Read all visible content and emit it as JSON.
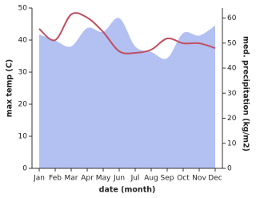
{
  "chart_data": {
    "type": "line",
    "x_label": "date (month)",
    "y_label": "max temp (C)",
    "y2_label": "med. precipitation (kg/m2)",
    "categories": [
      "Jan",
      "Feb",
      "Mar",
      "Apr",
      "May",
      "Jun",
      "Jul",
      "Aug",
      "Sep",
      "Oct",
      "Nov",
      "Dec"
    ],
    "series": [
      {
        "name": "med. precipitation",
        "type": "area",
        "axis": "y2",
        "color": "#b3c0f2",
        "values": [
          53.5,
          51,
          48.7,
          56,
          54.5,
          60,
          48.7,
          46.5,
          44,
          54,
          53,
          57
        ]
      },
      {
        "name": "max temp",
        "type": "line",
        "color": "#c0505f",
        "values": [
          43.5,
          40,
          48,
          47,
          42.5,
          36.5,
          36,
          37,
          40.5,
          39,
          39,
          37.5
        ]
      }
    ],
    "ylim": [
      0,
      50
    ],
    "yticks": [
      0,
      10,
      20,
      30,
      40,
      50
    ],
    "y2lim": [
      0,
      64
    ],
    "y2ticks": [
      0,
      10,
      20,
      30,
      40,
      50,
      60
    ]
  }
}
